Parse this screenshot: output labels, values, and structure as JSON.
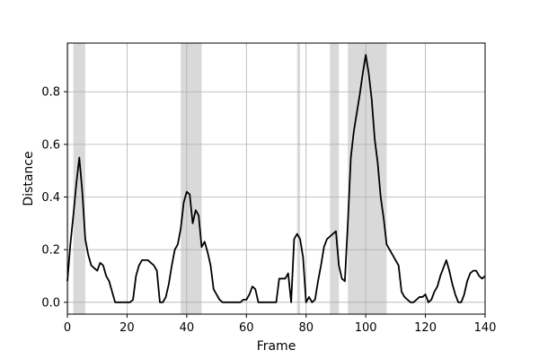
{
  "chart_data": {
    "type": "line",
    "title": "",
    "xlabel": "Frame",
    "ylabel": "Distance",
    "xlim": [
      0,
      140
    ],
    "ylim": [
      -0.045,
      0.985
    ],
    "grid": true,
    "x_ticks": [
      0,
      20,
      40,
      60,
      80,
      100,
      120,
      140
    ],
    "x_tick_labels": [
      "0",
      "20",
      "40",
      "60",
      "80",
      "100",
      "120",
      "140"
    ],
    "y_ticks": [
      0.0,
      0.2,
      0.4,
      0.6,
      0.8
    ],
    "y_tick_labels": [
      "0.0",
      "0.2",
      "0.4",
      "0.6",
      "0.8"
    ],
    "highlight_regions": [
      [
        0,
        0.4
      ],
      [
        2,
        6
      ],
      [
        38,
        45
      ],
      [
        77,
        78
      ],
      [
        88,
        91
      ],
      [
        94,
        107
      ]
    ],
    "series": [
      {
        "color": "#000000",
        "x": [
          0,
          1,
          2,
          3,
          4,
          5,
          6,
          7,
          8,
          9,
          10,
          11,
          12,
          13,
          14,
          15,
          16,
          17,
          18,
          19,
          20,
          21,
          22,
          23,
          24,
          25,
          26,
          27,
          28,
          29,
          30,
          31,
          32,
          33,
          34,
          35,
          36,
          37,
          38,
          39,
          40,
          41,
          42,
          43,
          44,
          45,
          46,
          47,
          48,
          49,
          50,
          51,
          52,
          53,
          54,
          55,
          56,
          57,
          58,
          59,
          60,
          61,
          62,
          63,
          64,
          65,
          66,
          67,
          68,
          69,
          70,
          71,
          72,
          73,
          74,
          75,
          76,
          77,
          78,
          79,
          80,
          81,
          82,
          83,
          84,
          85,
          86,
          87,
          88,
          89,
          90,
          91,
          92,
          93,
          94,
          95,
          96,
          97,
          98,
          99,
          100,
          101,
          102,
          103,
          104,
          105,
          106,
          107,
          108,
          109,
          110,
          111,
          112,
          113,
          114,
          115,
          116,
          117,
          118,
          119,
          120,
          121,
          122,
          123,
          124,
          125,
          126,
          127,
          128,
          129,
          130,
          131,
          132,
          133,
          134,
          135,
          136,
          137,
          138,
          139,
          140
        ],
        "y": [
          0.08,
          0.22,
          0.33,
          0.45,
          0.55,
          0.42,
          0.24,
          0.18,
          0.14,
          0.13,
          0.12,
          0.15,
          0.14,
          0.1,
          0.08,
          0.04,
          0.0,
          0.0,
          0.0,
          0.0,
          0.0,
          0.0,
          0.01,
          0.1,
          0.14,
          0.16,
          0.16,
          0.16,
          0.15,
          0.14,
          0.12,
          0.0,
          0.0,
          0.02,
          0.07,
          0.14,
          0.2,
          0.22,
          0.28,
          0.38,
          0.42,
          0.41,
          0.3,
          0.35,
          0.33,
          0.21,
          0.23,
          0.19,
          0.14,
          0.05,
          0.03,
          0.01,
          0.0,
          0.0,
          0.0,
          0.0,
          0.0,
          0.0,
          0.0,
          0.01,
          0.01,
          0.03,
          0.06,
          0.05,
          0.0,
          0.0,
          0.0,
          0.0,
          0.0,
          0.0,
          0.0,
          0.09,
          0.09,
          0.09,
          0.11,
          0.0,
          0.24,
          0.26,
          0.24,
          0.17,
          0.0,
          0.02,
          0.0,
          0.01,
          0.08,
          0.14,
          0.21,
          0.24,
          0.25,
          0.26,
          0.27,
          0.14,
          0.09,
          0.08,
          0.3,
          0.55,
          0.65,
          0.72,
          0.79,
          0.87,
          0.94,
          0.87,
          0.77,
          0.62,
          0.53,
          0.4,
          0.32,
          0.22,
          0.2,
          0.18,
          0.16,
          0.14,
          0.04,
          0.02,
          0.01,
          0.0,
          0.0,
          0.01,
          0.02,
          0.02,
          0.03,
          0.0,
          0.01,
          0.04,
          0.06,
          0.1,
          0.13,
          0.16,
          0.12,
          0.07,
          0.03,
          0.0,
          0.0,
          0.03,
          0.08,
          0.11,
          0.12,
          0.12,
          0.1,
          0.09,
          0.1
        ]
      }
    ]
  }
}
